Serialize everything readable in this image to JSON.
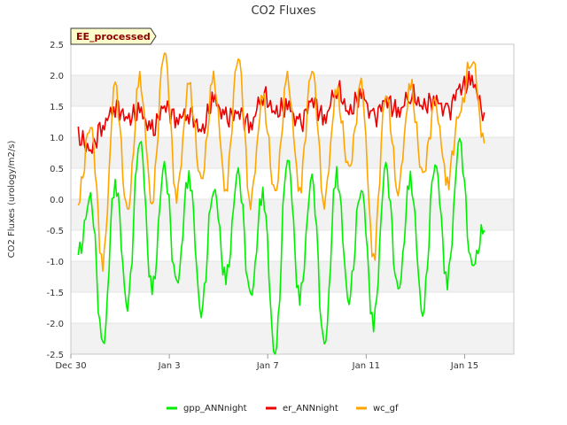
{
  "chart_data": {
    "type": "line",
    "title": "CO2 Fluxes",
    "xlabel": "",
    "ylabel": "CO2 Fluxes (urology/m2/s)",
    "badge": "EE_processed",
    "xlim": [
      0,
      18
    ],
    "ylim": [
      -2.5,
      2.5
    ],
    "y_ticks": [
      -2.5,
      -2.0,
      -1.5,
      -1.0,
      -0.5,
      0.0,
      0.5,
      1.0,
      1.5,
      2.0,
      2.5
    ],
    "y_tick_labels": [
      "-2.5",
      "-2.0",
      "-1.5",
      "-1.0",
      "-0.5",
      "0.0",
      "0.5",
      "1.0",
      "1.5",
      "2.0",
      "2.5"
    ],
    "x_ticks": [
      0,
      4,
      8,
      12,
      16
    ],
    "x_tick_labels": [
      "Dec 30",
      "Jan 3",
      "Jan 7",
      "Jan 11",
      "Jan 15"
    ],
    "x_days": [
      0.3,
      0.8,
      1.3,
      1.8,
      2.3,
      2.8,
      3.3,
      3.8,
      4.3,
      4.8,
      5.3,
      5.8,
      6.3,
      6.8,
      7.3,
      7.8,
      8.3,
      8.8,
      9.3,
      9.8,
      10.3,
      10.8,
      11.3,
      11.8,
      12.3,
      12.8,
      13.3,
      13.8,
      14.3,
      14.8,
      15.3,
      15.8,
      16.3,
      16.8
    ],
    "series": [
      {
        "name": "gpp_ANNnight",
        "color": "#00ee00",
        "values": [
          -0.9,
          0.0,
          -2.4,
          0.3,
          -1.7,
          1.0,
          -1.5,
          0.5,
          -1.4,
          0.4,
          -1.8,
          0.2,
          -1.3,
          0.4,
          -1.6,
          0.1,
          -2.5,
          0.7,
          -1.6,
          0.3,
          -2.4,
          0.4,
          -1.6,
          0.2,
          -2.0,
          0.5,
          -1.5,
          0.3,
          -1.8,
          0.6,
          -1.3,
          0.9,
          -1.1,
          -0.5
        ]
      },
      {
        "name": "er_ANNnight",
        "color": "#ee0000",
        "values": [
          1.0,
          0.8,
          1.2,
          1.5,
          1.3,
          1.4,
          1.1,
          1.5,
          1.3,
          1.4,
          1.1,
          1.6,
          1.3,
          1.4,
          1.2,
          1.7,
          1.4,
          1.5,
          1.2,
          1.6,
          1.3,
          1.8,
          1.4,
          1.7,
          1.3,
          1.6,
          1.4,
          1.7,
          1.5,
          1.6,
          1.4,
          1.8,
          1.9,
          1.4
        ]
      },
      {
        "name": "wc_gf",
        "color": "#ffa500",
        "values": [
          0.0,
          1.2,
          -1.0,
          1.8,
          -0.2,
          1.9,
          0.0,
          2.4,
          0.1,
          1.8,
          0.3,
          1.9,
          0.2,
          2.3,
          0.0,
          1.6,
          0.1,
          1.9,
          0.2,
          2.1,
          0.0,
          1.7,
          0.5,
          1.8,
          -0.9,
          1.7,
          0.2,
          1.8,
          0.4,
          1.5,
          0.3,
          1.4,
          2.3,
          0.9
        ]
      }
    ],
    "legend_position": "bottom-center",
    "grid": true
  }
}
